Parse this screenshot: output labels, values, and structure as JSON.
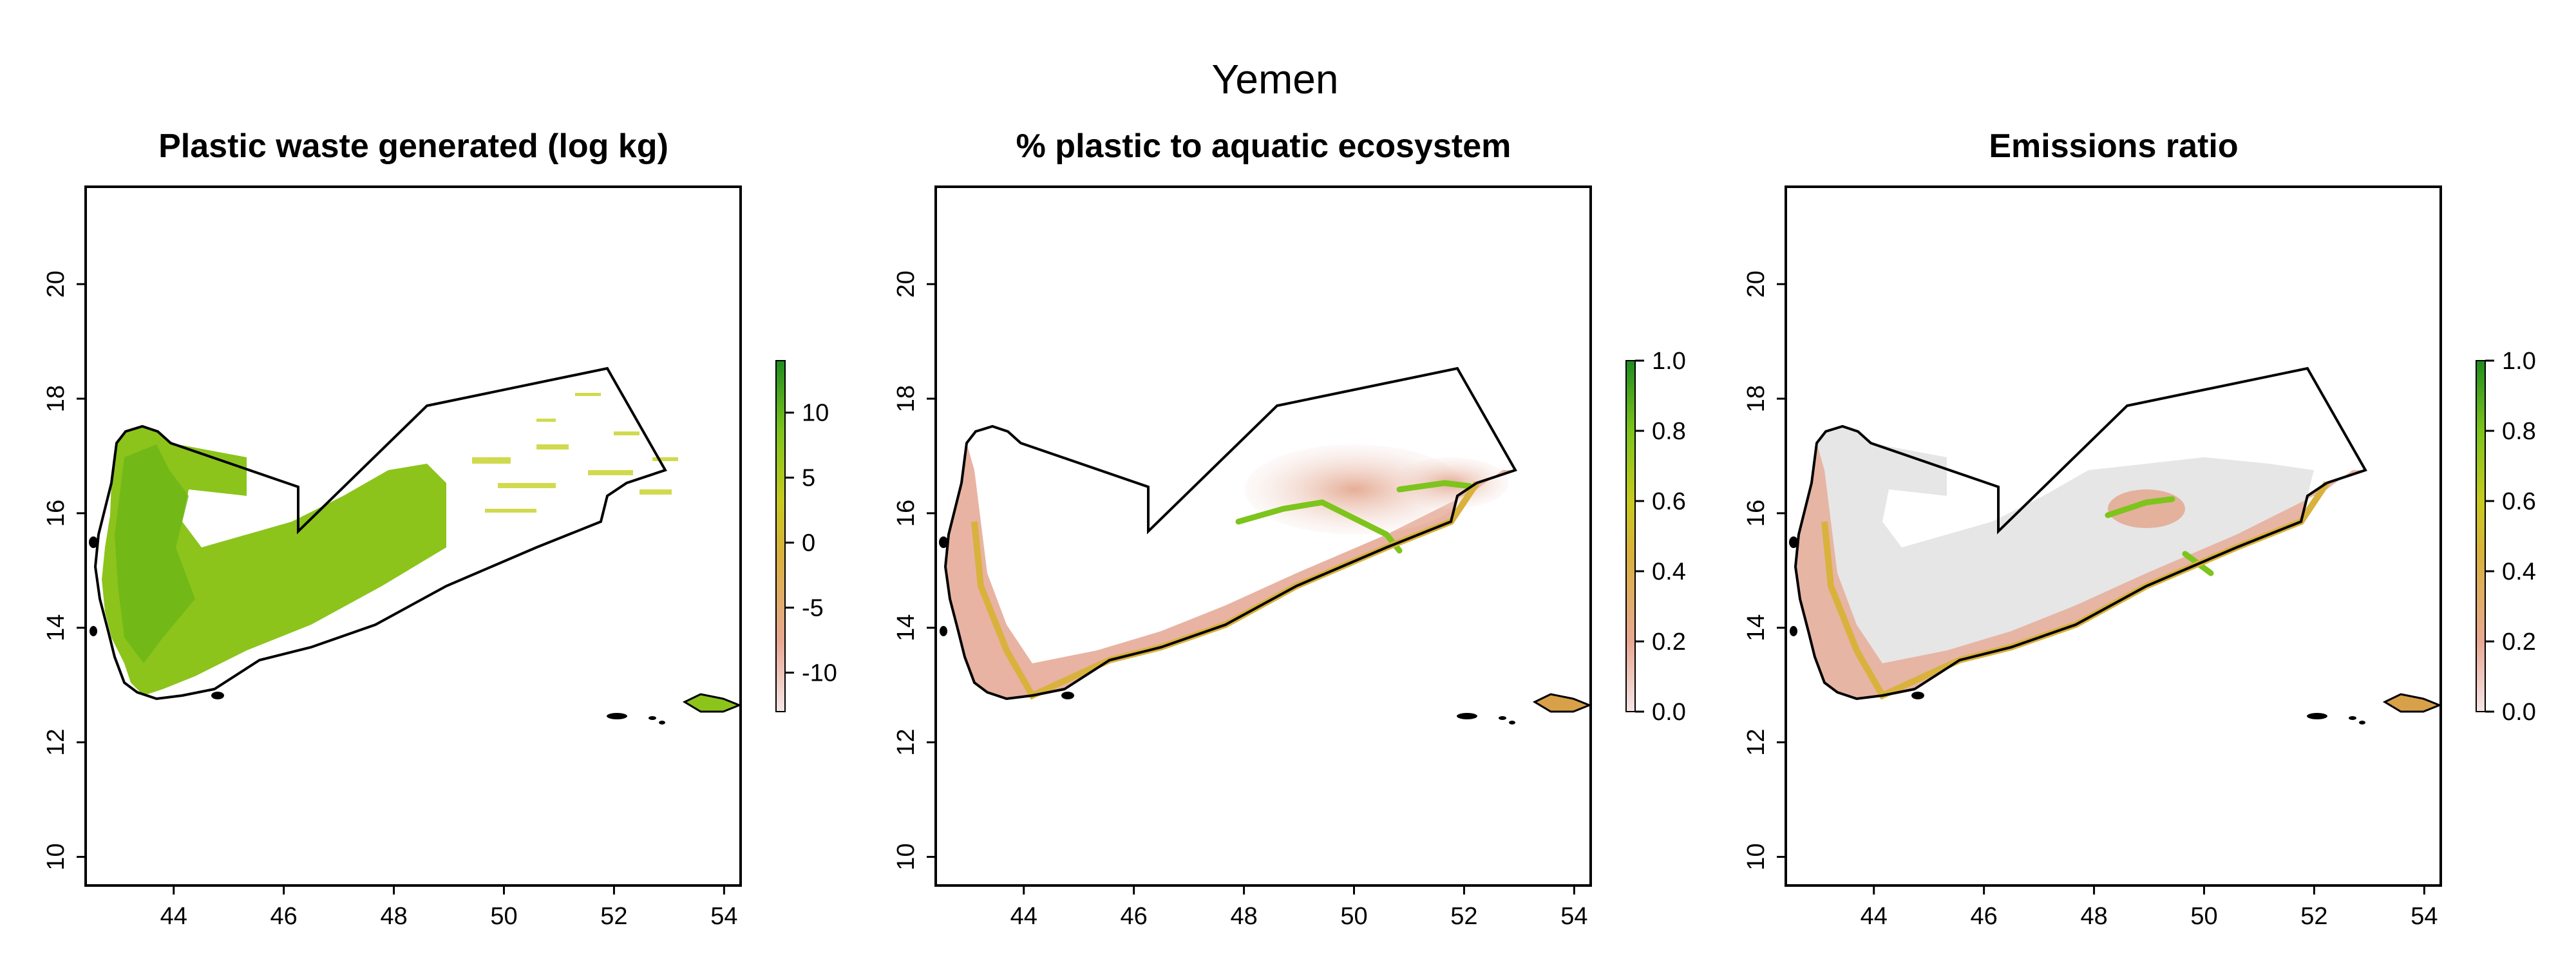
{
  "figure": {
    "title": "Yemen"
  },
  "panels": [
    {
      "id": "waste",
      "title": "Plastic waste generated (log kg)",
      "legend_ticks": [
        "10",
        "5",
        "0",
        "-5",
        "-10"
      ],
      "legend_range": [
        -13,
        14
      ],
      "legend_colors": [
        "#f5e6e6",
        "#e8a893",
        "#d9b13c",
        "#c8ca1f",
        "#7dc41c",
        "#1e8c1e"
      ]
    },
    {
      "id": "pct_aquatic",
      "title": "% plastic to aquatic ecosystem",
      "legend_ticks": [
        "1.0",
        "0.8",
        "0.6",
        "0.4",
        "0.2",
        "0.0"
      ],
      "legend_range": [
        0,
        1
      ],
      "legend_colors": [
        "#f5e6e6",
        "#e8a893",
        "#d9b13c",
        "#c8ca1f",
        "#7dc41c",
        "#1e8c1e"
      ]
    },
    {
      "id": "emissions",
      "title": "Emissions ratio",
      "legend_ticks": [
        "1.0",
        "0.8",
        "0.6",
        "0.4",
        "0.2",
        "0.0"
      ],
      "legend_range": [
        0,
        1
      ],
      "legend_colors": [
        "#f5e6e6",
        "#e8a893",
        "#d9b13c",
        "#c8ca1f",
        "#7dc41c",
        "#1e8c1e"
      ]
    }
  ],
  "axes": {
    "x_ticks": [
      "44",
      "46",
      "48",
      "50",
      "52",
      "54"
    ],
    "y_ticks": [
      "10",
      "12",
      "14",
      "16",
      "18",
      "20"
    ],
    "xlim": [
      42.4,
      54.3
    ],
    "ylim": [
      9.5,
      21.7
    ]
  }
}
